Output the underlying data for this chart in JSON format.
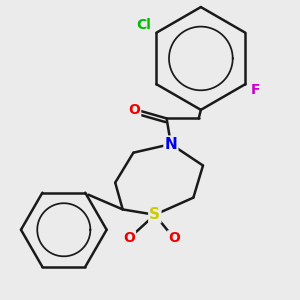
{
  "bg_color": "#ebebeb",
  "bond_color": "#1a1a1a",
  "bond_width": 1.8,
  "N_color": "#0000ee",
  "S_color": "#cccc00",
  "O_color": "#ee0000",
  "Cl_color": "#00bb00",
  "F_color": "#cc00cc",
  "figsize": [
    3.0,
    3.0
  ],
  "dpi": 100,
  "xlim": [
    0,
    10
  ],
  "ylim": [
    0,
    10
  ]
}
